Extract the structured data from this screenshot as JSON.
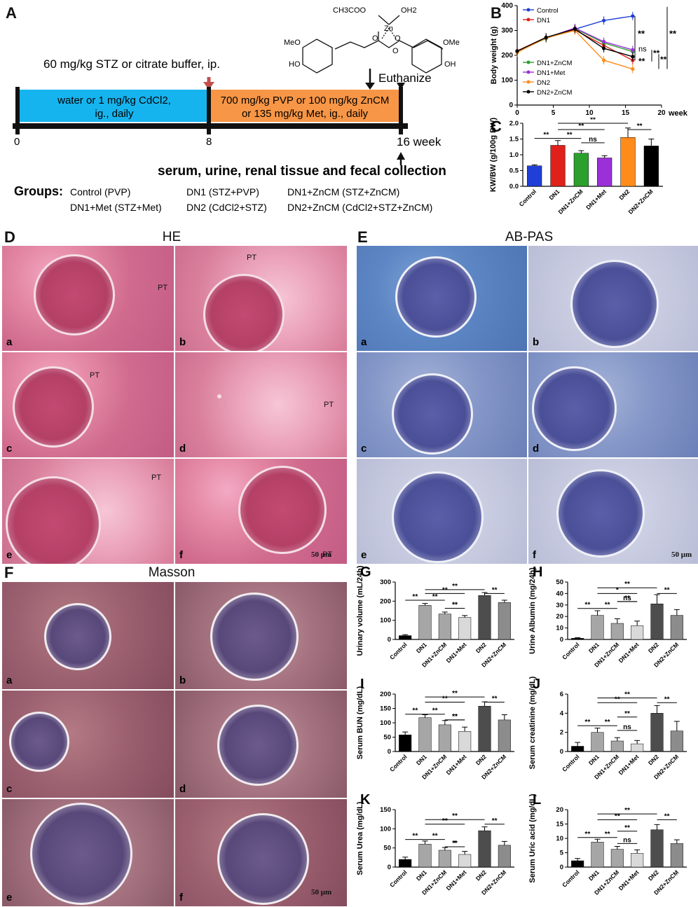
{
  "panels": {
    "A": {
      "label": "A",
      "stz_text": "60 mg/kg STZ or citrate buffer, ip.",
      "phase1": [
        "water or 1 mg/kg CdCl2,",
        "ig., daily"
      ],
      "phase2": [
        "700 mg/kg PVP or 100 mg/kg ZnCM",
        "or 135 mg/kg Met, ig., daily"
      ],
      "euthanize": "Euthanize",
      "ticks": [
        "0",
        "8",
        "16 week"
      ],
      "collection": "serum, urine, renal tissue and fecal collection",
      "groups_label": "Groups:",
      "groups": [
        "Control (PVP)",
        "DN1 (STZ+PVP)",
        "DN1+ZnCM (STZ+ZnCM)",
        "DN1+Met (STZ+Met)",
        "DN2 (CdCl2+STZ)",
        "DN2+ZnCM (CdCl2+STZ+ZnCM)"
      ],
      "molecule_labels": [
        "CH3COO",
        "OH2",
        "Zn",
        "O",
        "O",
        "O",
        "MeO",
        "HO",
        "OMe",
        "OH"
      ]
    },
    "D": {
      "label": "D",
      "title": "HE",
      "pt": "PT",
      "scale": "50 μm"
    },
    "E": {
      "label": "E",
      "title": "AB-PAS",
      "scale": "50 μm"
    },
    "F": {
      "label": "F",
      "title": "Masson",
      "scale": "50 μm"
    },
    "tile_letters": [
      "a",
      "b",
      "c",
      "d",
      "e",
      "f"
    ]
  },
  "chart_data": [
    {
      "panel": "B",
      "type": "line",
      "xlabel": "week",
      "ylabel": "Body weight (g)",
      "x": [
        0,
        4,
        8,
        12,
        16
      ],
      "xlim": [
        0,
        20
      ],
      "ylim": [
        0,
        400
      ],
      "xticks": [
        "0",
        "5",
        "10",
        "15",
        "20"
      ],
      "yticks": [
        "0",
        "100",
        "200",
        "300",
        "400"
      ],
      "series": [
        {
          "name": "Control",
          "color": "#1f3fd6",
          "values": [
            215,
            270,
            305,
            340,
            358
          ]
        },
        {
          "name": "DN1",
          "color": "#e0201b",
          "values": [
            218,
            272,
            302,
            240,
            180
          ]
        },
        {
          "name": "DN1+ZnCM",
          "color": "#2ca02c",
          "values": [
            216,
            268,
            308,
            250,
            215
          ]
        },
        {
          "name": "DN1+Met",
          "color": "#9b30d9",
          "values": [
            214,
            270,
            310,
            255,
            222
          ]
        },
        {
          "name": "DN2",
          "color": "#ff8c1a",
          "values": [
            212,
            270,
            300,
            180,
            145
          ]
        },
        {
          "name": "DN2+ZnCM",
          "color": "#000000",
          "values": [
            217,
            272,
            306,
            228,
            195
          ]
        }
      ],
      "significance": [
        "**",
        "ns",
        "**",
        "**",
        "**",
        "**"
      ]
    },
    {
      "panel": "C",
      "type": "bar",
      "ylabel": "KW/BW (g/100g BW)",
      "categories": [
        "Control",
        "DN1",
        "DN1+ZnCM",
        "DN1+Met",
        "DN2",
        "DN2+ZnCM"
      ],
      "values": [
        0.65,
        1.3,
        1.05,
        0.9,
        1.55,
        1.28
      ],
      "errors": [
        0.03,
        0.15,
        0.08,
        0.07,
        0.3,
        0.22
      ],
      "colors": [
        "#1f3fd6",
        "#e0201b",
        "#2ca02c",
        "#9b30d9",
        "#ff8c1a",
        "#000000"
      ],
      "ylim": [
        0,
        2.0
      ],
      "yticks": [
        "0.0",
        "0.5",
        "1.0",
        "1.5",
        "2.0"
      ],
      "significance": [
        "**",
        "**",
        "**",
        "**",
        "ns",
        "**"
      ]
    },
    {
      "panel": "G",
      "type": "bar",
      "ylabel": "Urinary volume (mL/24h)",
      "categories": [
        "Control",
        "DN1",
        "DN1+ZnCM",
        "DN1+Met",
        "DN2",
        "DN2+ZnCM"
      ],
      "values": [
        20,
        178,
        133,
        115,
        230,
        193
      ],
      "errors": [
        5,
        10,
        10,
        10,
        15,
        12
      ],
      "ylim": [
        0,
        300
      ],
      "yticks": [
        "0",
        "100",
        "200",
        "300"
      ],
      "significance": [
        "**",
        "**",
        "**",
        "**",
        "**",
        "**",
        "**"
      ]
    },
    {
      "panel": "H",
      "type": "bar",
      "ylabel": "Urine Albumin (mg/24h)",
      "categories": [
        "Control",
        "DN1",
        "DN1+ZnCM",
        "DN1+Met",
        "DN2",
        "DN2+ZnCM"
      ],
      "values": [
        1,
        21,
        14,
        12,
        31,
        21
      ],
      "errors": [
        0.5,
        4,
        4,
        4,
        8,
        5
      ],
      "ylim": [
        0,
        50
      ],
      "yticks": [
        "0",
        "10",
        "20",
        "30",
        "40",
        "50"
      ],
      "significance": [
        "**",
        "**",
        "**",
        "*",
        "**",
        "ns",
        "**"
      ]
    },
    {
      "panel": "I",
      "type": "bar",
      "ylabel": "Serum BUN (mg/dL)",
      "categories": [
        "Control",
        "DN1",
        "DN1+ZnCM",
        "DN1+Met",
        "DN2",
        "DN2+ZnCM"
      ],
      "values": [
        58,
        118,
        93,
        70,
        158,
        110
      ],
      "errors": [
        10,
        10,
        15,
        15,
        15,
        18
      ],
      "ylim": [
        0,
        200
      ],
      "yticks": [
        "0",
        "50",
        "100",
        "150",
        "200"
      ],
      "significance": [
        "**",
        "**",
        "**",
        "**",
        "**",
        "**",
        "**"
      ]
    },
    {
      "panel": "J",
      "type": "bar",
      "ylabel": "Serum creatinine (mg/dL)",
      "categories": [
        "Control",
        "DN1",
        "DN1+ZnCM",
        "DN1+Met",
        "DN2",
        "DN2+ZnCM"
      ],
      "values": [
        0.55,
        2.0,
        1.1,
        0.8,
        4.0,
        2.15
      ],
      "errors": [
        0.4,
        0.45,
        0.35,
        0.35,
        0.8,
        1.0
      ],
      "ylim": [
        0,
        6
      ],
      "yticks": [
        "0",
        "2",
        "4",
        "6"
      ],
      "significance": [
        "**",
        "**",
        "**",
        "**",
        "**",
        "ns",
        "**"
      ]
    },
    {
      "panel": "K",
      "type": "bar",
      "ylabel": "Serum Urea (mg/dL)",
      "categories": [
        "Control",
        "DN1",
        "DN1+ZnCM",
        "DN1+Met",
        "DN2",
        "DN2+ZnCM"
      ],
      "values": [
        20,
        60,
        44,
        33,
        95,
        57
      ],
      "errors": [
        6,
        8,
        7,
        8,
        10,
        10
      ],
      "ylim": [
        0,
        150
      ],
      "yticks": [
        "0",
        "50",
        "100",
        "150"
      ],
      "significance": [
        "**",
        "**",
        "**",
        "**",
        "**",
        "*",
        "**"
      ]
    },
    {
      "panel": "L",
      "type": "bar",
      "ylabel": "Serum Uric acid (mg/dL)",
      "categories": [
        "Control",
        "DN1",
        "DN1+ZnCM",
        "DN1+Met",
        "DN2",
        "DN2+ZnCM"
      ],
      "values": [
        2.2,
        8.7,
        6.2,
        4.8,
        13,
        8.2
      ],
      "errors": [
        0.8,
        1.0,
        1.0,
        1.2,
        1.8,
        1.3
      ],
      "ylim": [
        0,
        20
      ],
      "yticks": [
        "0",
        "5",
        "10",
        "15",
        "20"
      ],
      "significance": [
        "**",
        "**",
        "**",
        "**",
        "**",
        "ns",
        "**"
      ]
    }
  ]
}
